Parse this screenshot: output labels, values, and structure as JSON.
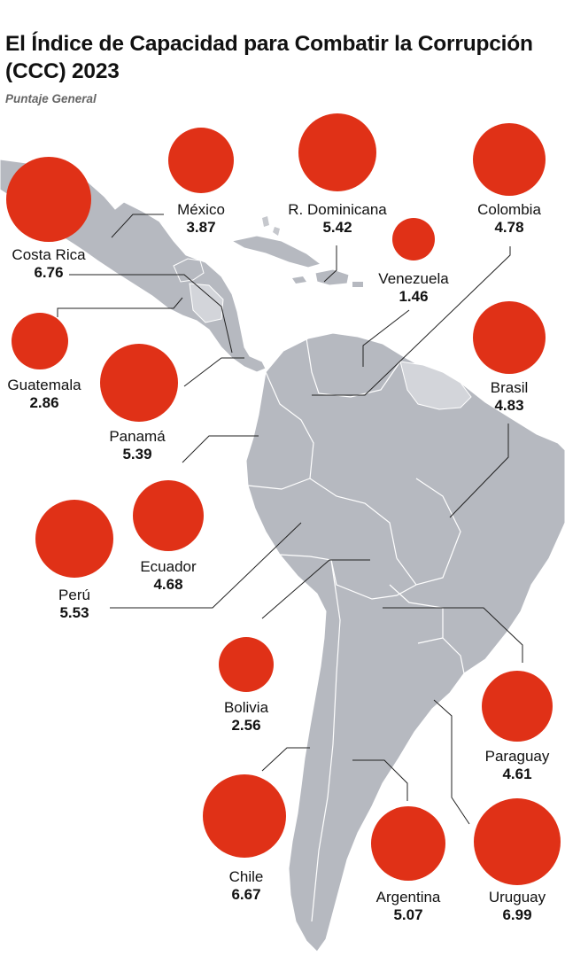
{
  "header": {
    "title": "El Índice de Capacidad para Combatir la Corrupción (CCC) 2023",
    "subtitle": "Puntaje General"
  },
  "colors": {
    "bubble": "#e03117",
    "land": "#b6b9c0",
    "land_light": "#d3d5da",
    "border": "#ffffff",
    "text": "#111111"
  },
  "countries": [
    {
      "id": "mexico",
      "name": "México",
      "score": "3.87",
      "value": 3.87
    },
    {
      "id": "rdominicana",
      "name": "R. Dominicana",
      "score": "5.42",
      "value": 5.42
    },
    {
      "id": "colombia",
      "name": "Colombia",
      "score": "4.78",
      "value": 4.78
    },
    {
      "id": "costarica",
      "name": "Costa Rica",
      "score": "6.76",
      "value": 6.76
    },
    {
      "id": "venezuela",
      "name": "Venezuela",
      "score": "1.46",
      "value": 1.46
    },
    {
      "id": "guatemala",
      "name": "Guatemala",
      "score": "2.86",
      "value": 2.86
    },
    {
      "id": "panama",
      "name": "Panamá",
      "score": "5.39",
      "value": 5.39
    },
    {
      "id": "brasil",
      "name": "Brasil",
      "score": "4.83",
      "value": 4.83
    },
    {
      "id": "ecuador",
      "name": "Ecuador",
      "score": "4.68",
      "value": 4.68
    },
    {
      "id": "peru",
      "name": "Perú",
      "score": "5.53",
      "value": 5.53
    },
    {
      "id": "bolivia",
      "name": "Bolivia",
      "score": "2.56",
      "value": 2.56
    },
    {
      "id": "paraguay",
      "name": "Paraguay",
      "score": "4.61",
      "value": 4.61
    },
    {
      "id": "chile",
      "name": "Chile",
      "score": "6.67",
      "value": 6.67
    },
    {
      "id": "argentina",
      "name": "Argentina",
      "score": "5.07",
      "value": 5.07
    },
    {
      "id": "uruguay",
      "name": "Uruguay",
      "score": "6.99",
      "value": 6.99
    }
  ]
}
